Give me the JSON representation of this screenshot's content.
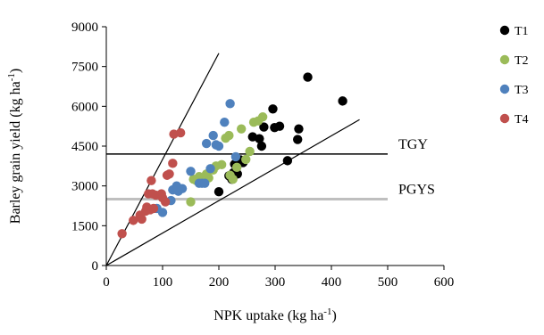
{
  "chart_data": {
    "type": "scatter",
    "xlabel": "NPK uptake (kg ha",
    "xlabel_sup": "-1",
    "xlabel_end": ")",
    "ylabel": "Barley grain yield (kg ha",
    "ylabel_sup": "-1",
    "ylabel_end": ")",
    "xlim": [
      0,
      600
    ],
    "ylim": [
      0,
      9000
    ],
    "xticks": [
      "0",
      "100",
      "200",
      "300",
      "400",
      "500",
      "600"
    ],
    "yticks": [
      "0",
      "1500",
      "3000",
      "4500",
      "6000",
      "7500",
      "9000"
    ],
    "grid": false,
    "legend_position": "right",
    "series": [
      {
        "name": "T1",
        "color": "#000000",
        "points": [
          [
            200,
            2780
          ],
          [
            218,
            3380
          ],
          [
            223,
            3250
          ],
          [
            226,
            3500
          ],
          [
            228,
            3820
          ],
          [
            233,
            3450
          ],
          [
            238,
            3980
          ],
          [
            243,
            3880
          ],
          [
            260,
            4850
          ],
          [
            272,
            4780
          ],
          [
            276,
            4500
          ],
          [
            280,
            5220
          ],
          [
            296,
            5900
          ],
          [
            299,
            5200
          ],
          [
            308,
            5250
          ],
          [
            322,
            3950
          ],
          [
            340,
            4750
          ],
          [
            342,
            5150
          ],
          [
            358,
            7100
          ],
          [
            420,
            6200
          ]
        ]
      },
      {
        "name": "T2",
        "color": "#9BBB59",
        "points": [
          [
            150,
            2400
          ],
          [
            155,
            3250
          ],
          [
            160,
            3200
          ],
          [
            165,
            3350
          ],
          [
            170,
            3150
          ],
          [
            178,
            3450
          ],
          [
            182,
            3300
          ],
          [
            190,
            3600
          ],
          [
            195,
            3750
          ],
          [
            205,
            3800
          ],
          [
            212,
            4800
          ],
          [
            218,
            4900
          ],
          [
            220,
            3400
          ],
          [
            225,
            3250
          ],
          [
            232,
            3700
          ],
          [
            240,
            5150
          ],
          [
            248,
            4000
          ],
          [
            255,
            4300
          ],
          [
            262,
            5400
          ],
          [
            270,
            5450
          ],
          [
            278,
            5600
          ]
        ]
      },
      {
        "name": "T3",
        "color": "#4F81BD",
        "points": [
          [
            90,
            2150
          ],
          [
            100,
            2000
          ],
          [
            115,
            2450
          ],
          [
            118,
            2850
          ],
          [
            125,
            3000
          ],
          [
            128,
            2800
          ],
          [
            135,
            2900
          ],
          [
            150,
            3550
          ],
          [
            165,
            3100
          ],
          [
            170,
            3100
          ],
          [
            175,
            3100
          ],
          [
            178,
            4600
          ],
          [
            185,
            3650
          ],
          [
            190,
            4900
          ],
          [
            195,
            4550
          ],
          [
            200,
            4500
          ],
          [
            210,
            5400
          ],
          [
            220,
            6100
          ],
          [
            230,
            4100
          ]
        ]
      },
      {
        "name": "T4",
        "color": "#C0504D",
        "points": [
          [
            28,
            1200
          ],
          [
            48,
            1700
          ],
          [
            60,
            1900
          ],
          [
            63,
            1750
          ],
          [
            70,
            2050
          ],
          [
            72,
            2200
          ],
          [
            75,
            2700
          ],
          [
            78,
            2100
          ],
          [
            82,
            2700
          ],
          [
            84,
            2150
          ],
          [
            80,
            3200
          ],
          [
            88,
            2650
          ],
          [
            98,
            2700
          ],
          [
            100,
            2550
          ],
          [
            105,
            2400
          ],
          [
            108,
            3400
          ],
          [
            112,
            3450
          ],
          [
            118,
            3850
          ],
          [
            120,
            4950
          ],
          [
            132,
            5000
          ]
        ]
      }
    ],
    "reference_lines": [
      {
        "label": "TGY",
        "type": "horizontal",
        "y": 4200,
        "x_range": [
          0,
          500
        ],
        "color": "#000000"
      },
      {
        "label": "PGYS",
        "type": "horizontal",
        "y": 2500,
        "x_range": [
          0,
          500
        ],
        "color": "#BFBFBF"
      },
      {
        "label": "",
        "type": "line",
        "from": [
          0,
          0
        ],
        "to": [
          200,
          8000
        ],
        "color": "#000000"
      },
      {
        "label": "",
        "type": "line",
        "from": [
          0,
          0
        ],
        "to": [
          450,
          5500
        ],
        "color": "#000000"
      }
    ]
  }
}
